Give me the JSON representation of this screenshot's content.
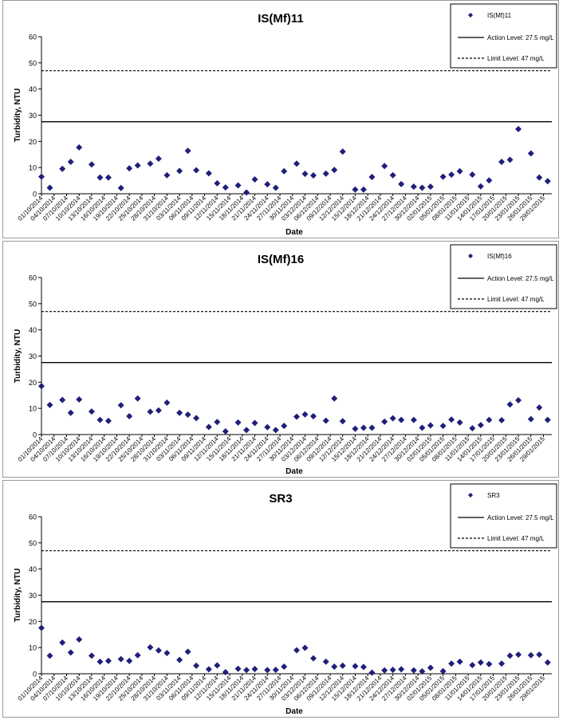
{
  "chart_data": [
    {
      "type": "scatter",
      "title": "IS(Mf)11",
      "xlabel": "Date",
      "ylabel": "Turbidity, NTU",
      "ylim": [
        0,
        60
      ],
      "yticks": [
        "0",
        "10",
        "20",
        "30",
        "40",
        "50",
        "60"
      ],
      "xlim": [
        "01/10/2014",
        "31/01/2015"
      ],
      "xticks": [
        "01/10/2014",
        "04/10/2014",
        "07/10/2014",
        "10/10/2014",
        "13/10/2014",
        "16/10/2014",
        "19/10/2014",
        "22/10/2014",
        "25/10/2014",
        "28/10/2014",
        "31/10/2014",
        "03/11/2014",
        "06/11/2014",
        "09/11/2014",
        "12/11/2014",
        "15/11/2014",
        "18/11/2014",
        "21/11/2014",
        "24/11/2014",
        "27/11/2014",
        "30/11/2014",
        "03/12/2014",
        "06/12/2014",
        "09/12/2014",
        "12/12/2014",
        "15/12/2014",
        "18/12/2014",
        "21/12/2014",
        "24/12/2014",
        "27/12/2014",
        "30/12/2014",
        "02/01/2015",
        "05/01/2015",
        "08/01/2015",
        "11/01/2015",
        "14/01/2015",
        "17/01/2015",
        "20/01/2015",
        "23/01/2015",
        "26/01/2015",
        "29/01/2015"
      ],
      "grid": false,
      "legend_position": "top-right",
      "legend": [
        "IS(Mf)11",
        "Action Level: 27.5 mg/L",
        "Limit Level: 47 mg/L"
      ],
      "action_level": 27.5,
      "limit_level": 47,
      "marker_color": "#1f1f7a",
      "series": [
        {
          "name": "IS(Mf)11",
          "points": [
            [
              "01/10/2014",
              6.5
            ],
            [
              "03/10/2014",
              2.3
            ],
            [
              "06/10/2014",
              9.5
            ],
            [
              "08/10/2014",
              12.2
            ],
            [
              "10/10/2014",
              17.7
            ],
            [
              "13/10/2014",
              11.2
            ],
            [
              "15/10/2014",
              6.2
            ],
            [
              "17/10/2014",
              6.2
            ],
            [
              "20/10/2014",
              2.2
            ],
            [
              "22/10/2014",
              9.7
            ],
            [
              "24/10/2014",
              10.8
            ],
            [
              "27/10/2014",
              11.5
            ],
            [
              "29/10/2014",
              13.4
            ],
            [
              "31/10/2014",
              7.1
            ],
            [
              "03/11/2014",
              8.7
            ],
            [
              "05/11/2014",
              16.4
            ],
            [
              "07/11/2014",
              9.0
            ],
            [
              "10/11/2014",
              7.8
            ],
            [
              "12/11/2014",
              4.0
            ],
            [
              "14/11/2014",
              2.4
            ],
            [
              "17/11/2014",
              3.2
            ],
            [
              "19/11/2014",
              0.5
            ],
            [
              "21/11/2014",
              5.5
            ],
            [
              "24/11/2014",
              3.6
            ],
            [
              "26/11/2014",
              2.3
            ],
            [
              "28/11/2014",
              8.6
            ],
            [
              "01/12/2014",
              11.5
            ],
            [
              "03/12/2014",
              7.6
            ],
            [
              "05/12/2014",
              7.0
            ],
            [
              "08/12/2014",
              7.7
            ],
            [
              "10/12/2014",
              9.1
            ],
            [
              "12/12/2014",
              16.1
            ],
            [
              "15/12/2014",
              1.6
            ],
            [
              "17/12/2014",
              1.6
            ],
            [
              "19/12/2014",
              6.4
            ],
            [
              "22/12/2014",
              10.6
            ],
            [
              "24/12/2014",
              7.1
            ],
            [
              "26/12/2014",
              3.7
            ],
            [
              "29/12/2014",
              2.7
            ],
            [
              "31/12/2014",
              2.3
            ],
            [
              "02/01/2015",
              2.7
            ],
            [
              "05/01/2015",
              6.5
            ],
            [
              "07/01/2015",
              7.3
            ],
            [
              "09/01/2015",
              8.6
            ],
            [
              "12/01/2015",
              7.3
            ],
            [
              "14/01/2015",
              2.8
            ],
            [
              "16/01/2015",
              5.1
            ],
            [
              "19/01/2015",
              12.2
            ],
            [
              "21/01/2015",
              13.0
            ],
            [
              "23/01/2015",
              24.7
            ],
            [
              "26/01/2015",
              15.4
            ],
            [
              "28/01/2015",
              6.2
            ],
            [
              "30/01/2015",
              4.8
            ]
          ]
        }
      ]
    },
    {
      "type": "scatter",
      "title": "IS(Mf)16",
      "xlabel": "Date",
      "ylabel": "Turbidity, NTU",
      "ylim": [
        0,
        60
      ],
      "yticks": [
        "0",
        "10",
        "20",
        "30",
        "40",
        "50",
        "60"
      ],
      "xlim": [
        "01/10/2014",
        "31/01/2015"
      ],
      "xticks": [
        "01/10/2014",
        "04/10/2014",
        "07/10/2014",
        "10/10/2014",
        "13/10/2014",
        "16/10/2014",
        "19/10/2014",
        "22/10/2014",
        "25/10/2014",
        "28/10/2014",
        "31/10/2014",
        "03/11/2014",
        "06/11/2014",
        "09/11/2014",
        "12/11/2014",
        "15/11/2014",
        "18/11/2014",
        "21/11/2014",
        "24/11/2014",
        "27/11/2014",
        "30/11/2014",
        "03/12/2014",
        "06/12/2014",
        "09/12/2014",
        "12/12/2014",
        "15/12/2014",
        "18/12/2014",
        "21/12/2014",
        "24/12/2014",
        "27/12/2014",
        "30/12/2014",
        "02/01/2015",
        "05/01/2015",
        "08/01/2015",
        "11/01/2015",
        "14/01/2015",
        "17/01/2015",
        "20/01/2015",
        "23/01/2015",
        "26/01/2015",
        "29/01/2015"
      ],
      "grid": false,
      "legend_position": "top-right",
      "legend": [
        "IS(Mf)16",
        "Action Level: 27.5 mg/L",
        "Limit Level: 47 mg/L"
      ],
      "action_level": 27.5,
      "limit_level": 47,
      "marker_color": "#1f1f7a",
      "series": [
        {
          "name": "IS(Mf)16",
          "points": [
            [
              "01/10/2014",
              18.5
            ],
            [
              "03/10/2014",
              11.3
            ],
            [
              "06/10/2014",
              13.2
            ],
            [
              "08/10/2014",
              8.3
            ],
            [
              "10/10/2014",
              13.4
            ],
            [
              "13/10/2014",
              8.8
            ],
            [
              "15/10/2014",
              5.6
            ],
            [
              "17/10/2014",
              5.2
            ],
            [
              "20/10/2014",
              11.2
            ],
            [
              "22/10/2014",
              7.0
            ],
            [
              "24/10/2014",
              13.8
            ],
            [
              "27/10/2014",
              8.7
            ],
            [
              "29/10/2014",
              9.2
            ],
            [
              "31/10/2014",
              12.2
            ],
            [
              "03/11/2014",
              8.3
            ],
            [
              "05/11/2014",
              7.6
            ],
            [
              "07/11/2014",
              6.3
            ],
            [
              "10/11/2014",
              2.9
            ],
            [
              "12/11/2014",
              4.8
            ],
            [
              "14/11/2014",
              1.2
            ],
            [
              "17/11/2014",
              4.6
            ],
            [
              "19/11/2014",
              1.7
            ],
            [
              "21/11/2014",
              4.4
            ],
            [
              "24/11/2014",
              2.8
            ],
            [
              "26/11/2014",
              1.7
            ],
            [
              "28/11/2014",
              3.3
            ],
            [
              "01/12/2014",
              6.8
            ],
            [
              "03/12/2014",
              7.7
            ],
            [
              "05/12/2014",
              7.0
            ],
            [
              "08/12/2014",
              5.3
            ],
            [
              "10/12/2014",
              13.8
            ],
            [
              "12/12/2014",
              5.1
            ],
            [
              "15/12/2014",
              2.2
            ],
            [
              "17/12/2014",
              2.6
            ],
            [
              "19/12/2014",
              2.6
            ],
            [
              "22/12/2014",
              4.9
            ],
            [
              "24/12/2014",
              6.2
            ],
            [
              "26/12/2014",
              5.6
            ],
            [
              "29/12/2014",
              5.6
            ],
            [
              "31/12/2014",
              2.6
            ],
            [
              "02/01/2015",
              3.5
            ],
            [
              "05/01/2015",
              3.3
            ],
            [
              "07/01/2015",
              5.7
            ],
            [
              "09/01/2015",
              4.6
            ],
            [
              "12/01/2015",
              2.4
            ],
            [
              "14/01/2015",
              3.6
            ],
            [
              "16/01/2015",
              5.6
            ],
            [
              "19/01/2015",
              5.5
            ],
            [
              "21/01/2015",
              11.5
            ],
            [
              "23/01/2015",
              13.1
            ],
            [
              "26/01/2015",
              5.9
            ],
            [
              "28/01/2015",
              10.3
            ],
            [
              "30/01/2015",
              5.6
            ]
          ]
        }
      ]
    },
    {
      "type": "scatter",
      "title": "SR3",
      "xlabel": "Date",
      "ylabel": "Turbidity, NTU",
      "ylim": [
        0,
        60
      ],
      "yticks": [
        "0",
        "10",
        "20",
        "30",
        "40",
        "50",
        "60"
      ],
      "xlim": [
        "01/10/2014",
        "31/01/2015"
      ],
      "xticks": [
        "01/10/2014",
        "04/10/2014",
        "07/10/2014",
        "10/10/2014",
        "13/10/2014",
        "16/10/2014",
        "19/10/2014",
        "22/10/2014",
        "25/10/2014",
        "28/10/2014",
        "31/10/2014",
        "03/11/2014",
        "06/11/2014",
        "09/11/2014",
        "12/11/2014",
        "15/11/2014",
        "18/11/2014",
        "21/11/2014",
        "24/11/2014",
        "27/11/2014",
        "30/11/2014",
        "03/12/2014",
        "06/12/2014",
        "09/12/2014",
        "12/12/2014",
        "15/12/2014",
        "18/12/2014",
        "21/12/2014",
        "24/12/2014",
        "27/12/2014",
        "30/12/2014",
        "02/01/2015",
        "05/01/2015",
        "08/01/2015",
        "11/01/2015",
        "14/01/2015",
        "17/01/2015",
        "20/01/2015",
        "23/01/2015",
        "26/01/2015",
        "29/01/2015"
      ],
      "grid": false,
      "legend_position": "top-right",
      "legend": [
        "SR3",
        "Action Level: 27.5 mg/L",
        "Limit Level: 47 mg/L"
      ],
      "action_level": 27.5,
      "limit_level": 47,
      "marker_color": "#1f1f7a",
      "series": [
        {
          "name": "SR3",
          "points": [
            [
              "01/10/2014",
              17.5
            ],
            [
              "03/10/2014",
              6.9
            ],
            [
              "06/10/2014",
              11.9
            ],
            [
              "08/10/2014",
              8.1
            ],
            [
              "10/10/2014",
              13.1
            ],
            [
              "13/10/2014",
              6.9
            ],
            [
              "15/10/2014",
              4.6
            ],
            [
              "17/10/2014",
              4.9
            ],
            [
              "20/10/2014",
              5.6
            ],
            [
              "22/10/2014",
              4.9
            ],
            [
              "24/10/2014",
              7.1
            ],
            [
              "27/10/2014",
              10.1
            ],
            [
              "29/10/2014",
              8.9
            ],
            [
              "31/10/2014",
              7.9
            ],
            [
              "03/11/2014",
              5.3
            ],
            [
              "05/11/2014",
              8.4
            ],
            [
              "07/11/2014",
              3.1
            ],
            [
              "10/11/2014",
              1.7
            ],
            [
              "12/11/2014",
              3.2
            ],
            [
              "14/11/2014",
              0.6
            ],
            [
              "17/11/2014",
              1.9
            ],
            [
              "19/11/2014",
              1.4
            ],
            [
              "21/11/2014",
              1.8
            ],
            [
              "24/11/2014",
              1.4
            ],
            [
              "26/11/2014",
              1.5
            ],
            [
              "28/11/2014",
              2.7
            ],
            [
              "01/12/2014",
              9.0
            ],
            [
              "03/12/2014",
              9.9
            ],
            [
              "05/12/2014",
              5.9
            ],
            [
              "08/12/2014",
              4.6
            ],
            [
              "10/12/2014",
              2.7
            ],
            [
              "12/12/2014",
              3.1
            ],
            [
              "15/12/2014",
              2.9
            ],
            [
              "17/12/2014",
              2.6
            ],
            [
              "19/12/2014",
              0.4
            ],
            [
              "22/12/2014",
              1.3
            ],
            [
              "24/12/2014",
              1.5
            ],
            [
              "26/12/2014",
              1.7
            ],
            [
              "29/12/2014",
              1.3
            ],
            [
              "31/12/2014",
              0.9
            ],
            [
              "02/01/2015",
              2.3
            ],
            [
              "05/01/2015",
              1.0
            ],
            [
              "07/01/2015",
              3.9
            ],
            [
              "09/01/2015",
              4.6
            ],
            [
              "12/01/2015",
              3.3
            ],
            [
              "14/01/2015",
              4.3
            ],
            [
              "16/01/2015",
              3.7
            ],
            [
              "19/01/2015",
              3.9
            ],
            [
              "21/01/2015",
              6.9
            ],
            [
              "23/01/2015",
              7.3
            ],
            [
              "26/01/2015",
              7.1
            ],
            [
              "28/01/2015",
              7.3
            ],
            [
              "30/01/2015",
              4.3
            ]
          ]
        }
      ]
    }
  ]
}
